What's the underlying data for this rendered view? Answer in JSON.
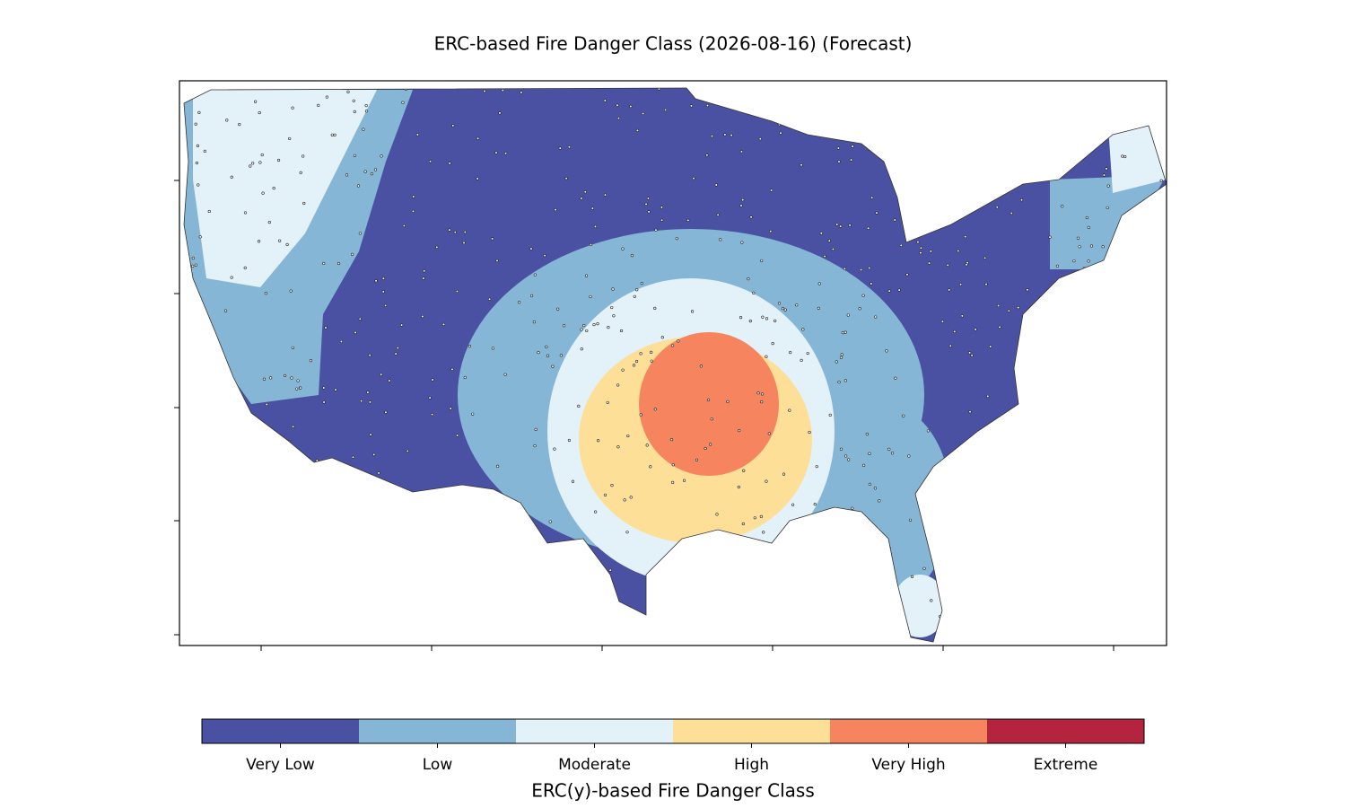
{
  "title": "ERC-based Fire Danger Class (2026-08-16) (Forecast)",
  "colorbar": {
    "label": "ERC(y)-based Fire Danger Class",
    "classes": [
      {
        "name": "Very Low",
        "color": "#4a51a3"
      },
      {
        "name": "Low",
        "color": "#86b6d6"
      },
      {
        "name": "Moderate",
        "color": "#e2f2f8"
      },
      {
        "name": "High",
        "color": "#fddf98"
      },
      {
        "name": "Very High",
        "color": "#f5845f"
      },
      {
        "name": "Extreme",
        "color": "#b5243f"
      }
    ]
  }
}
